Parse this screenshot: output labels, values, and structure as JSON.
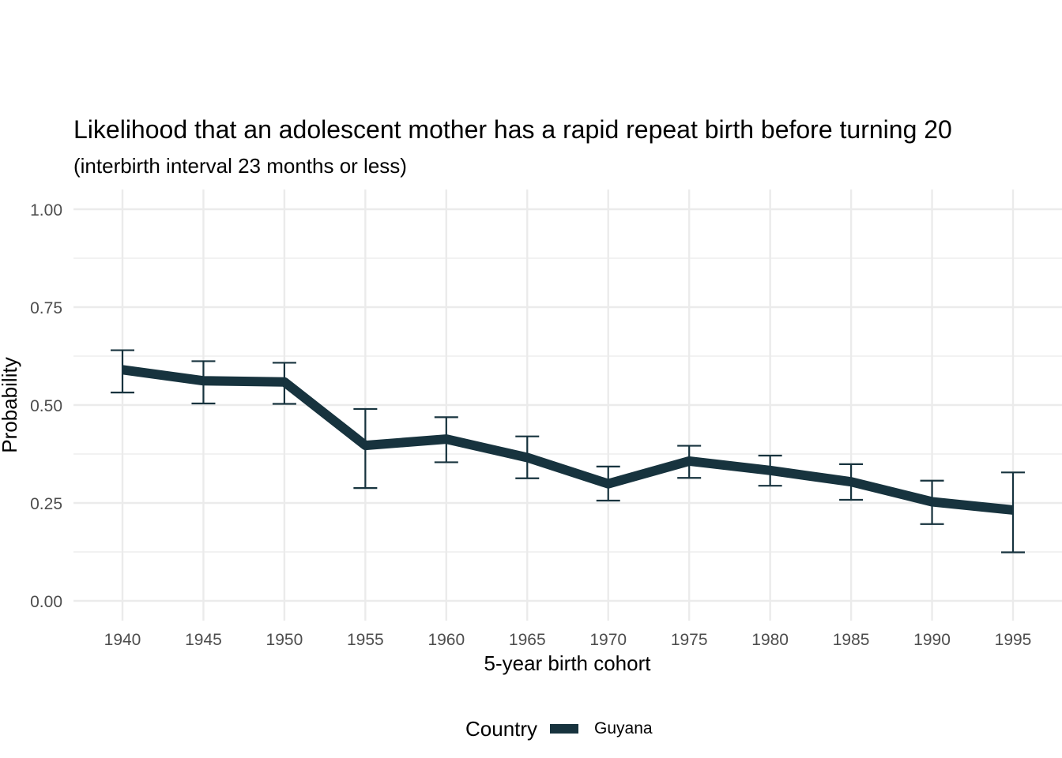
{
  "chart_data": {
    "type": "line",
    "title": "Likelihood that an adolescent mother has a rapid repeat birth before turning 20",
    "subtitle": "(interbirth interval 23 months or less)",
    "xlabel": "5-year birth cohort",
    "ylabel": "Probability",
    "x": [
      1940,
      1945,
      1950,
      1955,
      1960,
      1965,
      1970,
      1975,
      1980,
      1985,
      1990,
      1995
    ],
    "x_tick_labels": [
      "1940",
      "1945",
      "1950",
      "1955",
      "1960",
      "1965",
      "1970",
      "1975",
      "1980",
      "1985",
      "1990",
      "1995"
    ],
    "y_ticks": [
      0,
      0.25,
      0.5,
      0.75,
      1.0
    ],
    "y_tick_labels": [
      "0.00",
      "0.25",
      "0.50",
      "0.75",
      "1.00"
    ],
    "ylim": [
      0,
      1.0
    ],
    "grid": true,
    "legend": {
      "title": "Country",
      "position": "bottom"
    },
    "series": [
      {
        "name": "Guyana",
        "color": "#17333e",
        "values": [
          0.59,
          0.562,
          0.559,
          0.397,
          0.413,
          0.366,
          0.299,
          0.357,
          0.333,
          0.304,
          0.253,
          0.232
        ],
        "lower": [
          0.532,
          0.504,
          0.503,
          0.288,
          0.354,
          0.313,
          0.256,
          0.314,
          0.294,
          0.258,
          0.196,
          0.124
        ],
        "upper": [
          0.64,
          0.612,
          0.608,
          0.49,
          0.469,
          0.42,
          0.343,
          0.396,
          0.371,
          0.349,
          0.307,
          0.328
        ]
      }
    ]
  }
}
